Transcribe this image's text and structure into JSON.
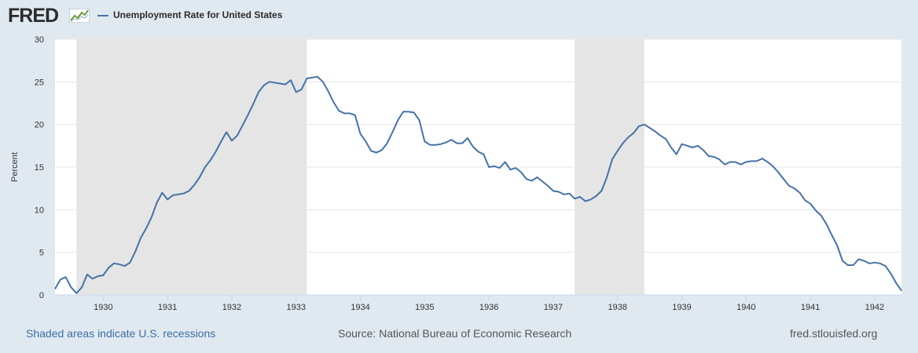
{
  "header": {
    "logo": "FRED",
    "logo_icon": "fred-chart-icon"
  },
  "chart_data": {
    "type": "line",
    "title": "",
    "legend": "Unemployment Rate for United States",
    "legend_position": "top-left",
    "xlabel": "",
    "ylabel": "Percent",
    "ylim": [
      0,
      30
    ],
    "xlim": [
      "1929-04",
      "1942-06"
    ],
    "grid": true,
    "yticks": [
      0,
      5,
      10,
      15,
      20,
      25,
      30
    ],
    "xticks": [
      "1930",
      "1931",
      "1932",
      "1933",
      "1934",
      "1935",
      "1936",
      "1937",
      "1938",
      "1939",
      "1940",
      "1941",
      "1942"
    ],
    "line_color": "#4572a7",
    "recession_color": "#e5e5e5",
    "recessions": [
      {
        "start": "1929-08",
        "end": "1933-03"
      },
      {
        "start": "1937-05",
        "end": "1938-06"
      }
    ],
    "series": [
      {
        "name": "Unemployment Rate for United States",
        "x": [
          "1929-04",
          "1929-05",
          "1929-06",
          "1929-07",
          "1929-08",
          "1929-09",
          "1929-10",
          "1929-11",
          "1929-12",
          "1930-01",
          "1930-02",
          "1930-03",
          "1930-04",
          "1930-05",
          "1930-06",
          "1930-07",
          "1930-08",
          "1930-09",
          "1930-10",
          "1930-11",
          "1930-12",
          "1931-01",
          "1931-02",
          "1931-03",
          "1931-04",
          "1931-05",
          "1931-06",
          "1931-07",
          "1931-08",
          "1931-09",
          "1931-10",
          "1931-11",
          "1931-12",
          "1932-01",
          "1932-02",
          "1932-03",
          "1932-04",
          "1932-05",
          "1932-06",
          "1932-07",
          "1932-08",
          "1932-09",
          "1932-10",
          "1932-11",
          "1932-12",
          "1933-01",
          "1933-02",
          "1933-03",
          "1933-04",
          "1933-05",
          "1933-06",
          "1933-07",
          "1933-08",
          "1933-09",
          "1933-10",
          "1933-11",
          "1933-12",
          "1934-01",
          "1934-02",
          "1934-03",
          "1934-04",
          "1934-05",
          "1934-06",
          "1934-07",
          "1934-08",
          "1934-09",
          "1934-10",
          "1934-11",
          "1934-12",
          "1935-01",
          "1935-02",
          "1935-03",
          "1935-04",
          "1935-05",
          "1935-06",
          "1935-07",
          "1935-08",
          "1935-09",
          "1935-10",
          "1935-11",
          "1935-12",
          "1936-01",
          "1936-02",
          "1936-03",
          "1936-04",
          "1936-05",
          "1936-06",
          "1936-07",
          "1936-08",
          "1936-09",
          "1936-10",
          "1936-11",
          "1936-12",
          "1937-01",
          "1937-02",
          "1937-03",
          "1937-04",
          "1937-05",
          "1937-06",
          "1937-07",
          "1937-08",
          "1937-09",
          "1937-10",
          "1937-11",
          "1937-12",
          "1938-01",
          "1938-02",
          "1938-03",
          "1938-04",
          "1938-05",
          "1938-06",
          "1938-07",
          "1938-08",
          "1938-09",
          "1938-10",
          "1938-11",
          "1938-12",
          "1939-01",
          "1939-02",
          "1939-03",
          "1939-04",
          "1939-05",
          "1939-06",
          "1939-07",
          "1939-08",
          "1939-09",
          "1939-10",
          "1939-11",
          "1939-12",
          "1940-01",
          "1940-02",
          "1940-03",
          "1940-04",
          "1940-05",
          "1940-06",
          "1940-07",
          "1940-08",
          "1940-09",
          "1940-10",
          "1940-11",
          "1940-12",
          "1941-01",
          "1941-02",
          "1941-03",
          "1941-04",
          "1941-05",
          "1941-06",
          "1941-07",
          "1941-08",
          "1941-09",
          "1941-10",
          "1941-11",
          "1941-12",
          "1942-01",
          "1942-02",
          "1942-03",
          "1942-04",
          "1942-05",
          "1942-06"
        ],
        "values": [
          0.7,
          1.8,
          2.1,
          0.9,
          0.2,
          0.9,
          2.4,
          1.9,
          2.2,
          2.3,
          3.2,
          3.7,
          3.6,
          3.4,
          3.8,
          5.1,
          6.7,
          7.8,
          9.1,
          10.8,
          12.0,
          11.2,
          11.7,
          11.8,
          11.9,
          12.2,
          12.9,
          13.8,
          15.0,
          15.8,
          16.8,
          18.0,
          19.1,
          18.1,
          18.7,
          19.9,
          21.1,
          22.4,
          23.8,
          24.6,
          25.0,
          24.9,
          24.8,
          24.7,
          25.2,
          23.8,
          24.1,
          25.4,
          25.5,
          25.6,
          25.0,
          23.9,
          22.6,
          21.6,
          21.3,
          21.3,
          21.1,
          18.9,
          18.0,
          16.9,
          16.7,
          17.0,
          17.8,
          19.1,
          20.5,
          21.5,
          21.5,
          21.4,
          20.5,
          18.0,
          17.6,
          17.6,
          17.7,
          17.9,
          18.2,
          17.8,
          17.8,
          18.4,
          17.4,
          16.8,
          16.5,
          15.0,
          15.1,
          14.9,
          15.6,
          14.7,
          14.9,
          14.4,
          13.6,
          13.4,
          13.8,
          13.3,
          12.8,
          12.2,
          12.1,
          11.8,
          11.9,
          11.3,
          11.5,
          11.0,
          11.2,
          11.6,
          12.2,
          13.8,
          15.9,
          16.9,
          17.8,
          18.5,
          19.0,
          19.8,
          20.0,
          19.6,
          19.2,
          18.7,
          18.3,
          17.3,
          16.5,
          17.7,
          17.5,
          17.3,
          17.5,
          17.0,
          16.3,
          16.2,
          15.9,
          15.3,
          15.6,
          15.6,
          15.3,
          15.6,
          15.7,
          15.7,
          16.0,
          15.6,
          15.1,
          14.4,
          13.6,
          12.8,
          12.5,
          12.0,
          11.1,
          10.7,
          9.9,
          9.3,
          8.3,
          7.0,
          5.8,
          4.0,
          3.5,
          3.5,
          4.2,
          4.0,
          3.7,
          3.8,
          3.7,
          3.4,
          2.5,
          1.4,
          0.5
        ]
      }
    ]
  },
  "footer": {
    "left": "Shaded areas indicate U.S. recessions",
    "middle": "Source: National Bureau of Economic Research",
    "right": "fred.stlouisfed.org"
  }
}
